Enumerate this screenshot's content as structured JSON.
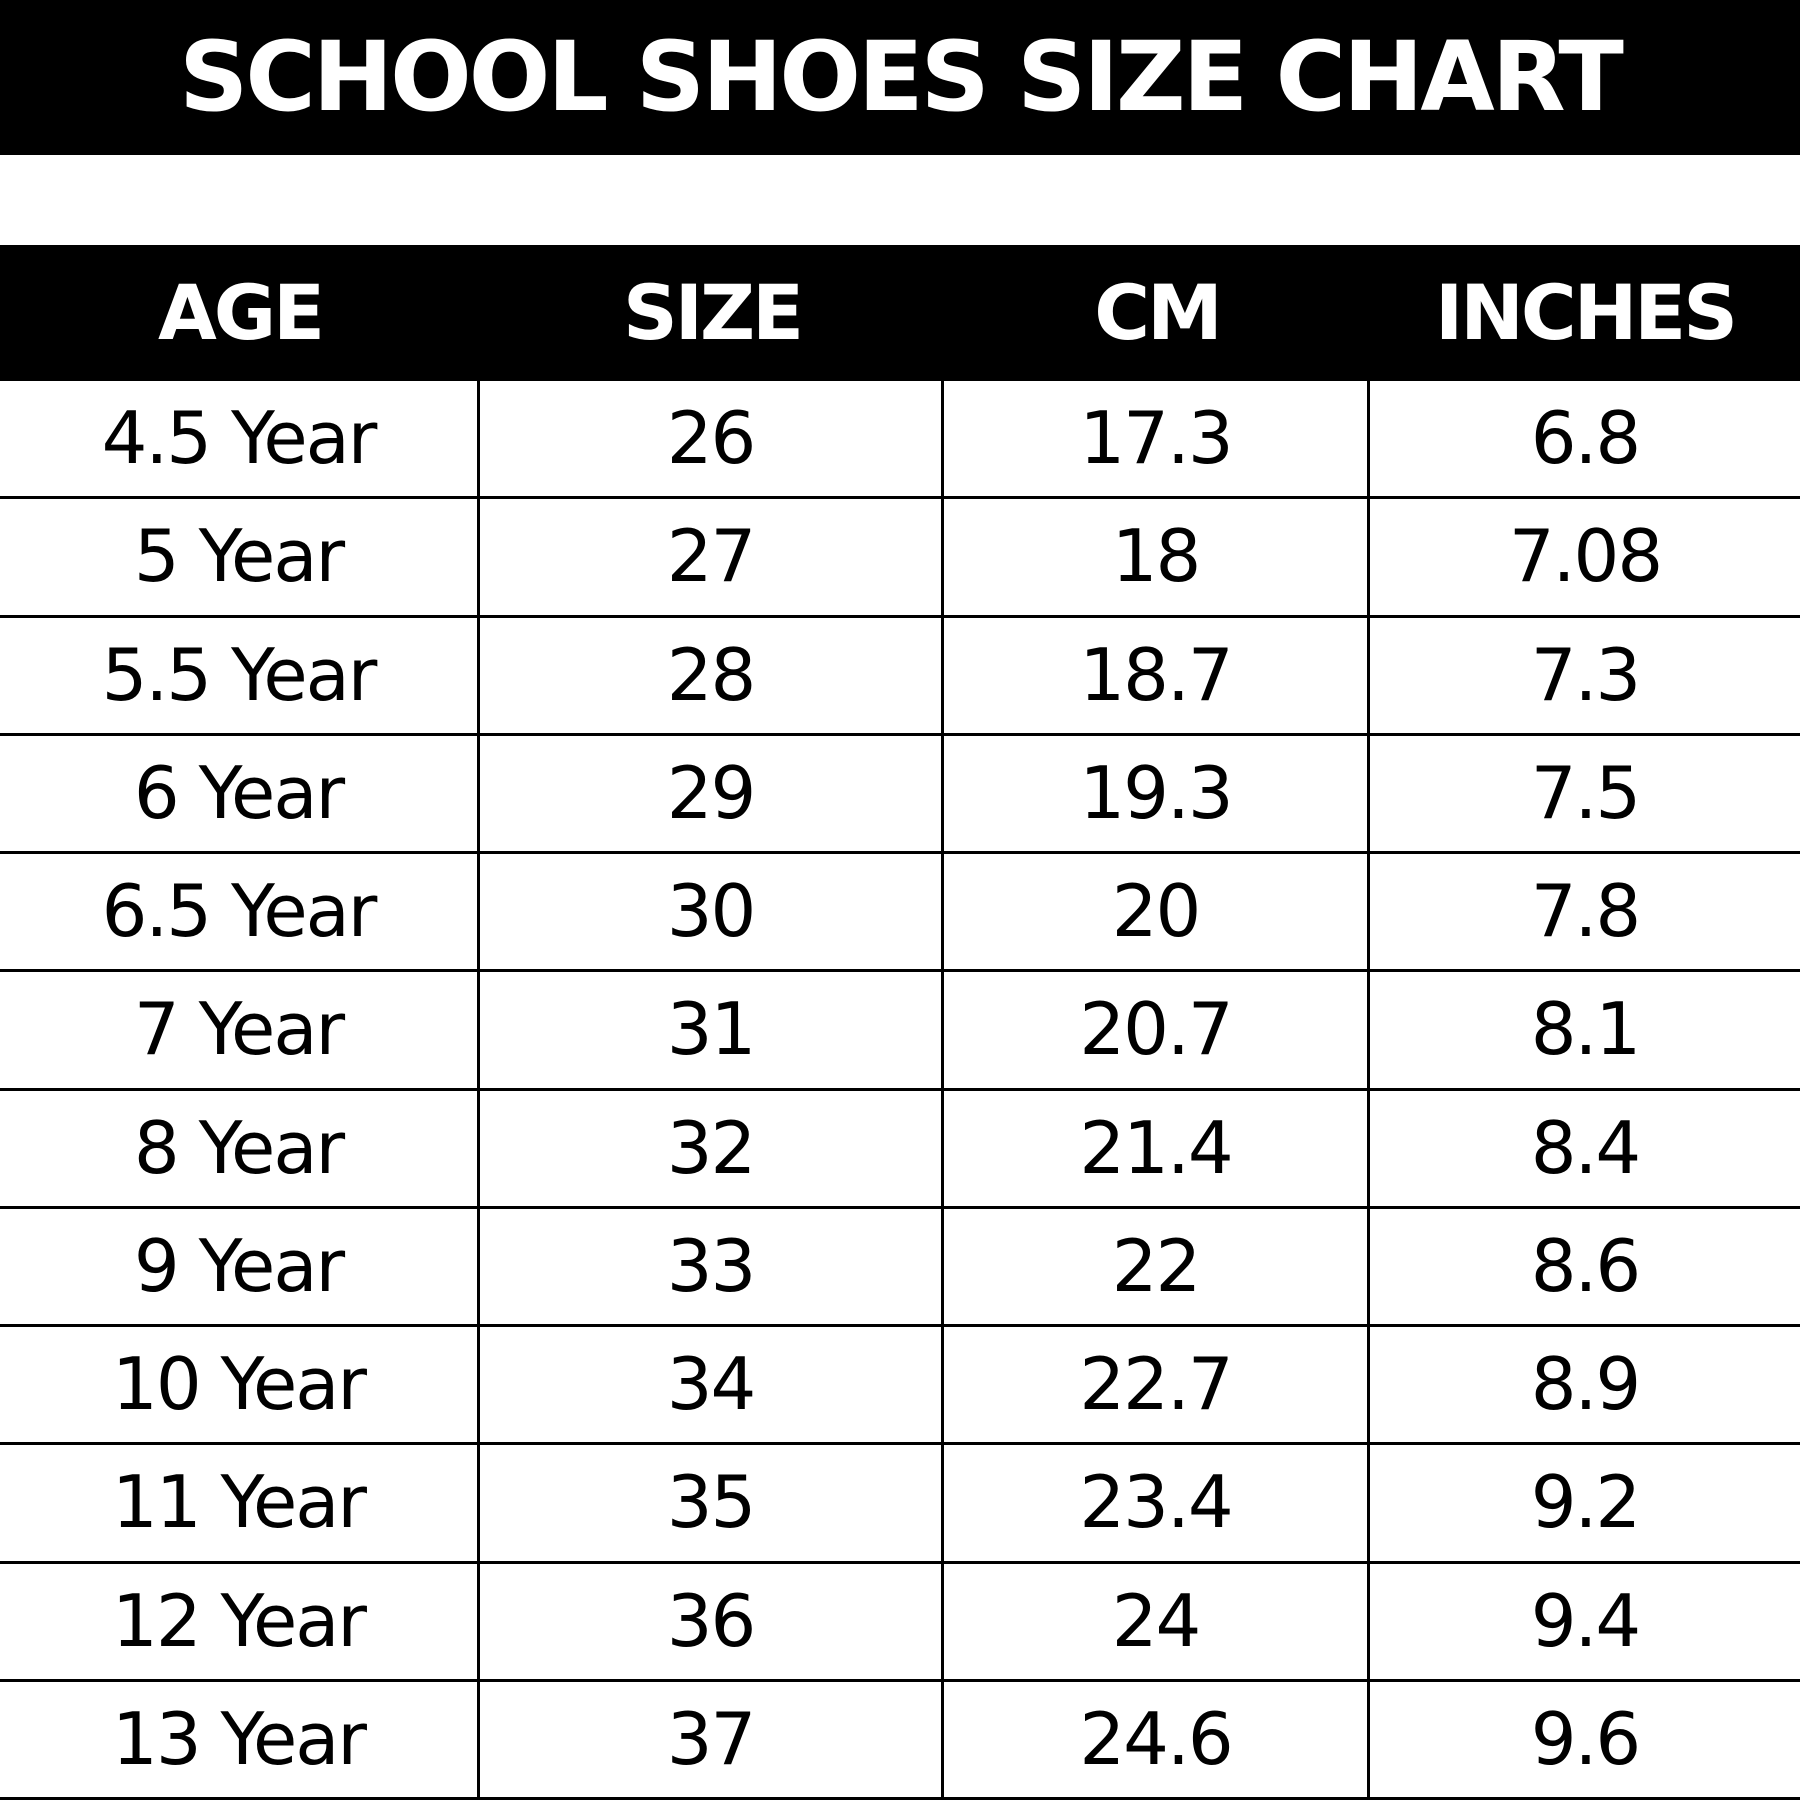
{
  "title": "SCHOOL SHOES SIZE CHART",
  "table": {
    "columns": [
      "AGE",
      "SIZE",
      "CM",
      "INCHES"
    ],
    "rows": [
      [
        "4.5 Year",
        26,
        17.3,
        6.8
      ],
      [
        "5 Year",
        27,
        18,
        7.08
      ],
      [
        "5.5 Year",
        28,
        18.7,
        7.3
      ],
      [
        "6 Year",
        29,
        19.3,
        7.5
      ],
      [
        "6.5 Year",
        30,
        20,
        7.8
      ],
      [
        "7 Year",
        31,
        20.7,
        8.1
      ],
      [
        "8 Year",
        32,
        21.4,
        8.4
      ],
      [
        "9 Year",
        33,
        22,
        8.6
      ],
      [
        "10 Year",
        34,
        22.7,
        8.9
      ],
      [
        "11 Year",
        35,
        23.4,
        9.2
      ],
      [
        "12 Year",
        36,
        24,
        9.4
      ],
      [
        "13 Year",
        37,
        24.6,
        9.6
      ]
    ]
  }
}
